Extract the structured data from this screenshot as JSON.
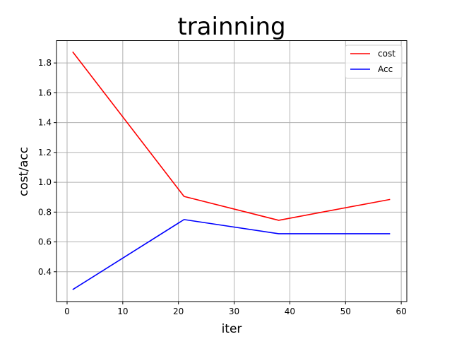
{
  "chart_data": {
    "type": "line",
    "title": "trainning",
    "xlabel": "iter",
    "ylabel": "cost/acc",
    "xlim": [
      -1.9,
      61
    ],
    "ylim": [
      0.2,
      1.95
    ],
    "xticks": [
      0,
      10,
      20,
      30,
      40,
      50,
      60
    ],
    "yticks": [
      0.4,
      0.6,
      0.8,
      1.0,
      1.2,
      1.4,
      1.6,
      1.8
    ],
    "grid": true,
    "legend_position": "top-right",
    "series": [
      {
        "name": "cost",
        "color": "#ff0000",
        "x": [
          1,
          21,
          38,
          58
        ],
        "y": [
          1.875,
          0.905,
          0.745,
          0.885
        ]
      },
      {
        "name": "Acc",
        "color": "#0000ff",
        "x": [
          1,
          21,
          38,
          58
        ],
        "y": [
          0.28,
          0.75,
          0.655,
          0.655
        ]
      }
    ]
  }
}
